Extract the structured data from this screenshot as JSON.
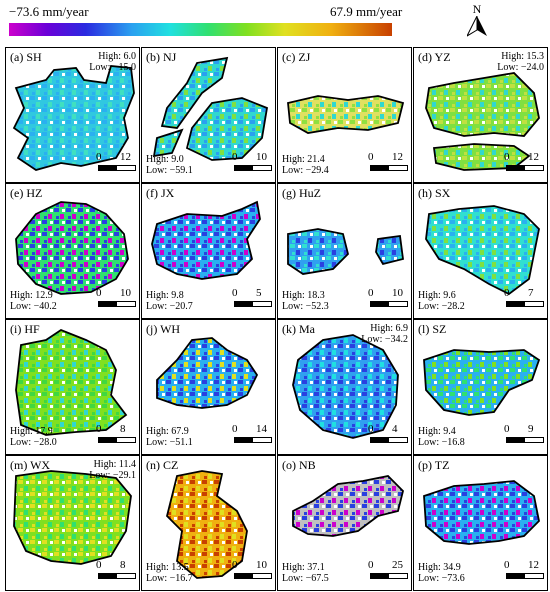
{
  "colorbar": {
    "min_label": "−73.6 mm/year",
    "max_label": "67.9 mm/year",
    "colors": [
      "#cc00cc",
      "#2a2ae0",
      "#2aa0f0",
      "#20e0e0",
      "#30e070",
      "#e0e020",
      "#c84000"
    ]
  },
  "north_arrow": {
    "label": "N"
  },
  "panels": [
    {
      "title": "(a) SH",
      "high": "High: 6.0",
      "low": "Low: −15.0",
      "scale_zero": "0",
      "scale_len": "12",
      "unit": "km"
    },
    {
      "title": "(b) NJ",
      "high": "High: 9.0",
      "low": "Low: −59.1",
      "scale_zero": "0",
      "scale_len": "10",
      "unit": "km"
    },
    {
      "title": "(c) ZJ",
      "high": "High: 21.4",
      "low": "Low: −29.4",
      "scale_zero": "0",
      "scale_len": "12",
      "unit": "km"
    },
    {
      "title": "(d) YZ",
      "high": "High: 15.3",
      "low": "Low: −24.0",
      "scale_zero": "0",
      "scale_len": "12",
      "unit": "km"
    },
    {
      "title": "(e) HZ",
      "high": "High: 12.9",
      "low": "Low: −40.2",
      "scale_zero": "0",
      "scale_len": "10",
      "unit": "km"
    },
    {
      "title": "(f) JX",
      "high": "High: 9.8",
      "low": "Low: −20.7",
      "scale_zero": "0",
      "scale_len": "5",
      "unit": "km"
    },
    {
      "title": "(g) HuZ",
      "high": "High: 18.3",
      "low": "Low: −52.3",
      "scale_zero": "0",
      "scale_len": "10",
      "unit": "km"
    },
    {
      "title": "(h) SX",
      "high": "High: 9.6",
      "low": "Low: −28.2",
      "scale_zero": "0",
      "scale_len": "7",
      "unit": "km"
    },
    {
      "title": "(i) HF",
      "high": "High: 17.9",
      "low": "Low: −28.0",
      "scale_zero": "0",
      "scale_len": "8",
      "unit": "km"
    },
    {
      "title": "(j) WH",
      "high": "High: 67.9",
      "low": "Low: −51.1",
      "scale_zero": "0",
      "scale_len": "14",
      "unit": "km"
    },
    {
      "title": "(k) Ma",
      "high": "High: 6.9",
      "low": "Low: −34.2",
      "scale_zero": "0",
      "scale_len": "4",
      "unit": "km"
    },
    {
      "title": "(l) SZ",
      "high": "High: 9.4",
      "low": "Low: −16.8",
      "scale_zero": "0",
      "scale_len": "9",
      "unit": "km"
    },
    {
      "title": "(m) WX",
      "high": "High: 11.4",
      "low": "Low: −29.1",
      "scale_zero": "0",
      "scale_len": "8",
      "unit": "km"
    },
    {
      "title": "(n) CZ",
      "high": "High: 13.5",
      "low": "Low: −16.7",
      "scale_zero": "0",
      "scale_len": "10",
      "unit": "km"
    },
    {
      "title": "(o) NB",
      "high": "High: 37.1",
      "low": "Low: −67.5",
      "scale_zero": "0",
      "scale_len": "25",
      "unit": "km"
    },
    {
      "title": "(p) TZ",
      "high": "High: 34.9",
      "low": "Low: −73.6",
      "scale_zero": "0",
      "scale_len": "12",
      "unit": "km"
    }
  ]
}
